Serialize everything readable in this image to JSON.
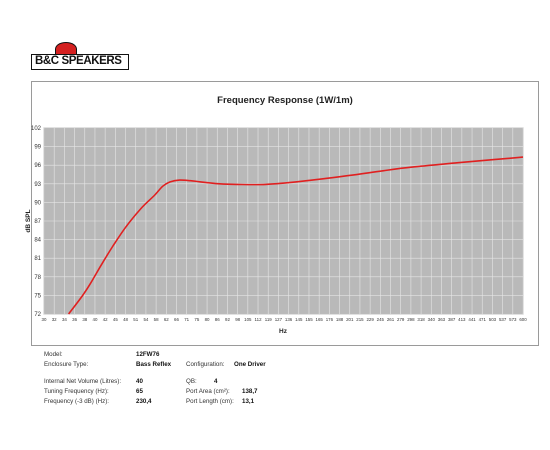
{
  "logo": {
    "text": "B&C SPEAKERS",
    "accent": "#d42020"
  },
  "chart_data": {
    "type": "line",
    "title": "Frequency Response (1W/1m)",
    "xlabel": "Hz",
    "ylabel": "dB SPL",
    "x_scale": "log",
    "xlim": [
      30,
      600
    ],
    "ylim": [
      72,
      102
    ],
    "yticks": [
      "72",
      "75",
      "78",
      "81",
      "84",
      "87",
      "90",
      "93",
      "96",
      "99",
      "102"
    ],
    "xticks": [
      "30",
      "32",
      "34",
      "36",
      "38",
      "40",
      "42",
      "45",
      "48",
      "51",
      "54",
      "58",
      "62",
      "66",
      "71",
      "75",
      "80",
      "86",
      "92",
      "98",
      "105",
      "112",
      "119",
      "127",
      "136",
      "145",
      "155",
      "165",
      "176",
      "188",
      "201",
      "215",
      "229",
      "245",
      "261",
      "279",
      "298",
      "318",
      "340",
      "363",
      "387",
      "413",
      "441",
      "471",
      "503",
      "537",
      "573",
      "600"
    ],
    "grid": true,
    "series": [
      {
        "color": "#e02020",
        "x": [
          35,
          38,
          40,
          43,
          46,
          50,
          55,
          60,
          63,
          66,
          70,
          75,
          80,
          90,
          100,
          120,
          150,
          200,
          250,
          300,
          400,
          500,
          600
        ],
        "y": [
          72,
          74.8,
          76.8,
          80,
          82.8,
          86,
          89,
          91.2,
          92.6,
          93.3,
          93.6,
          93.5,
          93.3,
          93.0,
          92.9,
          92.9,
          93.4,
          94.3,
          95.1,
          95.7,
          96.4,
          96.9,
          97.3
        ]
      }
    ]
  },
  "specs": {
    "model_label": "Model:",
    "model_value": "12FW76",
    "enclosure_label": "Enclosure Type:",
    "enclosure_value": "Bass Reflex",
    "config_label": "Configuration:",
    "config_value": "One Driver",
    "volume_label": "Internal Net Volume (Litres):",
    "volume_value": "40",
    "qb_label": "QB:",
    "qb_value": "4",
    "tuning_label": "Tuning Frequency (Hz):",
    "tuning_value": "65",
    "port_area_label": "Port Area (cm²):",
    "port_area_value": "138,7",
    "f3_label": "Frequency (-3 dB) (Hz):",
    "f3_value": "230,4",
    "port_length_label": "Port Length (cm):",
    "port_length_value": "13,1"
  }
}
